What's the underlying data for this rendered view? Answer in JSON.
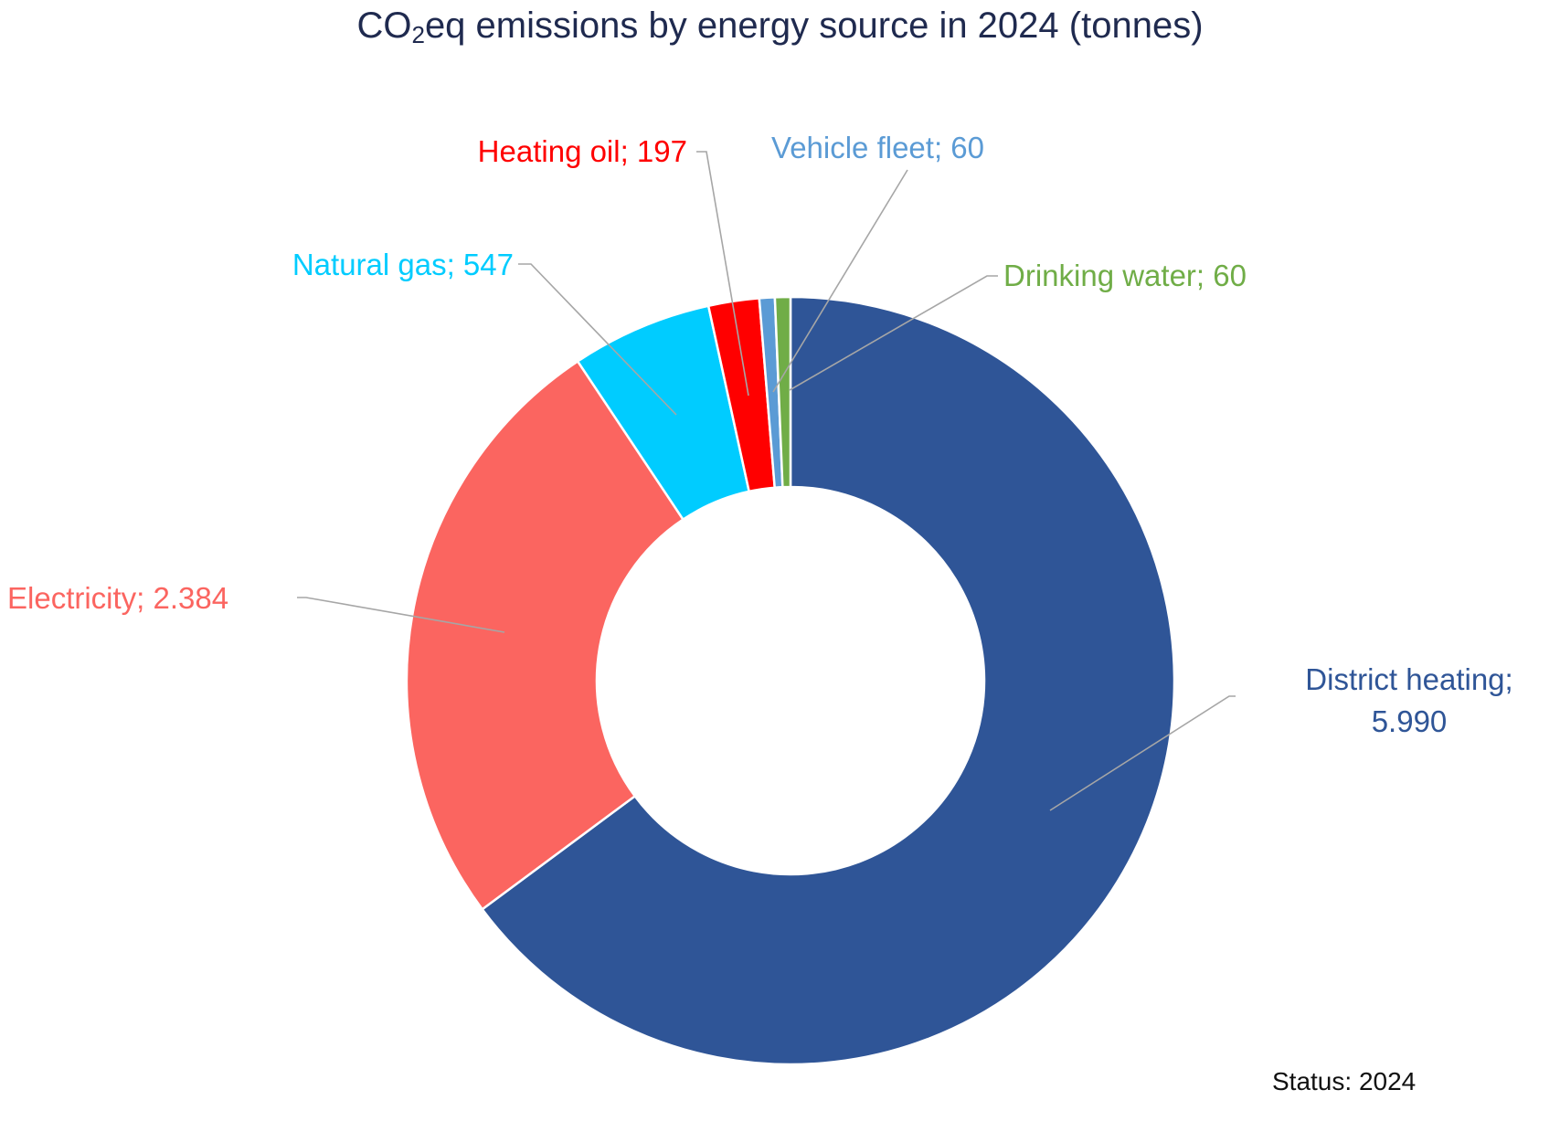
{
  "chart_data": {
    "type": "donut",
    "title": {
      "prefix": "CO",
      "subscript": "2",
      "suffix": "eq emissions by energy source in 2024 (tonnes)"
    },
    "start_angle_deg": 0,
    "direction": "clockwise",
    "series": [
      {
        "name": "District heating",
        "value": 5990,
        "display_value": "5.990",
        "color": "#2f5597",
        "label_lines": [
          "District heating;",
          "5.990"
        ]
      },
      {
        "name": "Electricity",
        "value": 2384,
        "display_value": "2.384",
        "color": "#fb6560",
        "label_lines": [
          "Electricity;  2.384"
        ]
      },
      {
        "name": "Natural gas",
        "value": 547,
        "display_value": "547",
        "color": "#00ccff",
        "label_lines": [
          "Natural gas;  547"
        ]
      },
      {
        "name": "Heating oil",
        "value": 197,
        "display_value": "197",
        "color": "#ff0000",
        "label_lines": [
          "Heating oil;  197"
        ]
      },
      {
        "name": "Vehicle fleet",
        "value": 60,
        "display_value": "60",
        "color": "#5b9bd5",
        "label_lines": [
          "Vehicle fleet;  60"
        ]
      },
      {
        "name": "Drinking water",
        "value": 60,
        "display_value": "60",
        "color": "#70ad47",
        "label_lines": [
          "Drinking water;  60"
        ]
      }
    ],
    "leader_line_color": "#a6a6a6",
    "legend": "none"
  },
  "footer": {
    "status": "Status: 2024"
  }
}
